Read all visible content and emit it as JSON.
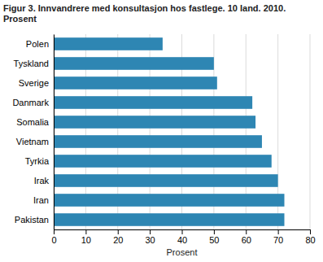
{
  "chart_data": {
    "type": "bar",
    "orientation": "horizontal",
    "title": "Figur 3. Innvandrere med konsultasjon hos fastlege. 10 land. 2010.\nProsent",
    "categories": [
      "Pakistan",
      "Iran",
      "Irak",
      "Tyrkia",
      "Vietnam",
      "Somalia",
      "Danmark",
      "Sverige",
      "Tyskland",
      "Polen"
    ],
    "values": [
      72,
      72,
      70,
      68,
      65,
      63,
      62,
      51,
      50,
      34
    ],
    "color": "#2e86b3",
    "xlabel": "Prosent",
    "xlim": [
      0,
      80
    ],
    "xticks": [
      0,
      10,
      20,
      30,
      40,
      50,
      60,
      70,
      80
    ],
    "grid": true
  }
}
